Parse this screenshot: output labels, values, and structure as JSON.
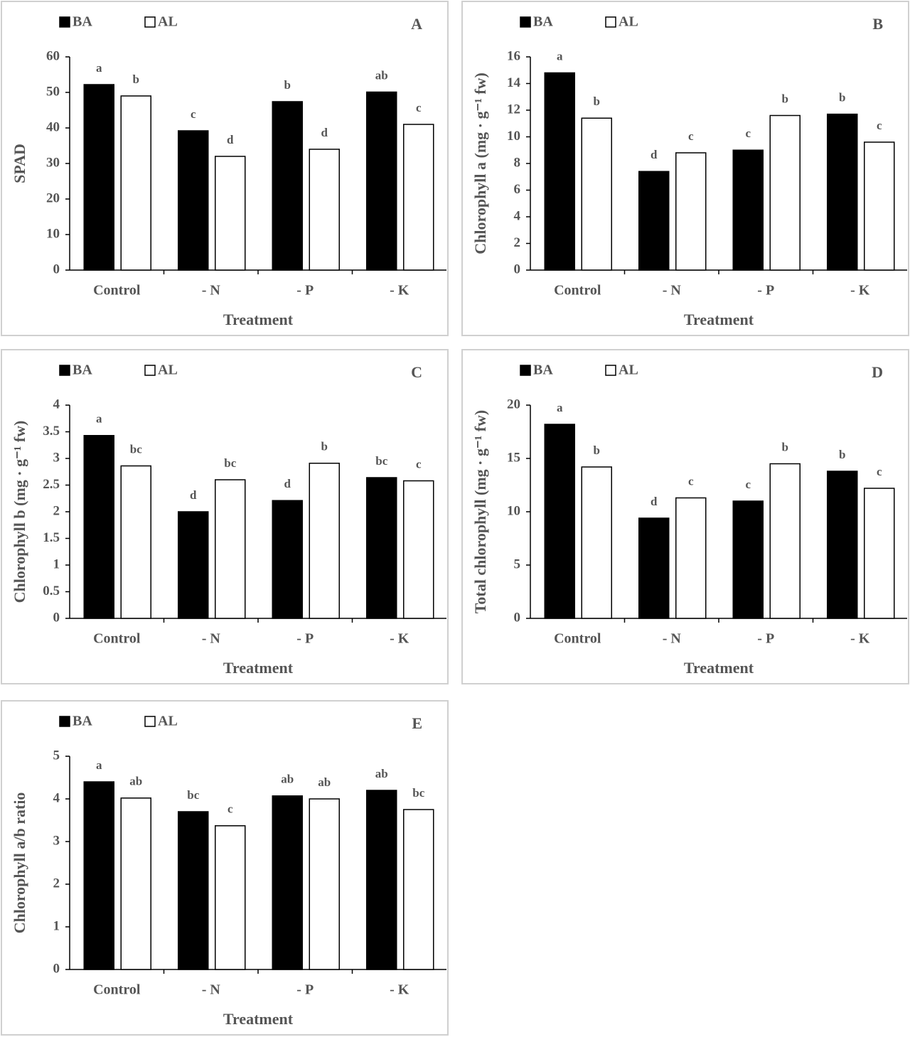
{
  "chart_data": [
    {
      "type": "bar",
      "panel": "A",
      "ylabel": "SPAD",
      "xlabel": "Treatment",
      "categories": [
        "Control",
        "- N",
        "- P",
        "- K"
      ],
      "series": [
        {
          "name": "BA",
          "color": "#000000",
          "values": [
            52.2,
            39.2,
            47.4,
            50.1
          ],
          "letters": [
            "a",
            "c",
            "b",
            "ab"
          ]
        },
        {
          "name": "AL",
          "color": "#ffffff",
          "values": [
            49,
            32,
            34,
            41
          ],
          "letters": [
            "b",
            "d",
            "d",
            "c"
          ]
        }
      ],
      "ylim": [
        0,
        60
      ],
      "yticks": [
        0,
        10,
        20,
        30,
        40,
        50,
        60
      ]
    },
    {
      "type": "bar",
      "panel": "B",
      "ylabel": "Chlorophyll a (mg · g⁻¹ fw)",
      "xlabel": "Treatment",
      "categories": [
        "Control",
        "- N",
        "- P",
        "- K"
      ],
      "series": [
        {
          "name": "BA",
          "color": "#000000",
          "values": [
            14.8,
            7.4,
            9.0,
            11.7
          ],
          "letters": [
            "a",
            "d",
            "c",
            "b"
          ]
        },
        {
          "name": "AL",
          "color": "#ffffff",
          "values": [
            11.4,
            8.8,
            11.6,
            9.6
          ],
          "letters": [
            "b",
            "c",
            "b",
            "c"
          ]
        }
      ],
      "ylim": [
        0,
        16
      ],
      "yticks": [
        0,
        2,
        4,
        6,
        8,
        10,
        12,
        14,
        16
      ]
    },
    {
      "type": "bar",
      "panel": "C",
      "ylabel": "Chlorophyll b (mg · g⁻¹ fw)",
      "xlabel": "Treatment",
      "categories": [
        "Control",
        "- N",
        "- P",
        "- K"
      ],
      "series": [
        {
          "name": "BA",
          "color": "#000000",
          "values": [
            3.43,
            2.0,
            2.21,
            2.64
          ],
          "letters": [
            "a",
            "d",
            "d",
            "bc"
          ]
        },
        {
          "name": "AL",
          "color": "#ffffff",
          "values": [
            2.86,
            2.6,
            2.91,
            2.58
          ],
          "letters": [
            "bc",
            "bc",
            "b",
            "c"
          ]
        }
      ],
      "ylim": [
        0,
        4
      ],
      "yticks": [
        0,
        0.5,
        1,
        1.5,
        2,
        2.5,
        3,
        3.5,
        4
      ]
    },
    {
      "type": "bar",
      "panel": "D",
      "ylabel": "Total chlorophyll (mg · g⁻¹ fw)",
      "xlabel": "Treatment",
      "categories": [
        "Control",
        "- N",
        "- P",
        "- K"
      ],
      "series": [
        {
          "name": "BA",
          "color": "#000000",
          "values": [
            18.2,
            9.4,
            11.0,
            13.8
          ],
          "letters": [
            "a",
            "d",
            "c",
            "b"
          ]
        },
        {
          "name": "AL",
          "color": "#ffffff",
          "values": [
            14.2,
            11.3,
            14.5,
            12.2
          ],
          "letters": [
            "b",
            "c",
            "b",
            "c"
          ]
        }
      ],
      "ylim": [
        0,
        20
      ],
      "yticks": [
        0,
        5,
        10,
        15,
        20
      ]
    },
    {
      "type": "bar",
      "panel": "E",
      "ylabel": "Chlorophyll a/b ratio",
      "xlabel": "Treatment",
      "categories": [
        "Control",
        "- N",
        "- P",
        "- K"
      ],
      "series": [
        {
          "name": "BA",
          "color": "#000000",
          "values": [
            4.4,
            3.7,
            4.07,
            4.2
          ],
          "letters": [
            "a",
            "bc",
            "ab",
            "ab"
          ]
        },
        {
          "name": "AL",
          "color": "#ffffff",
          "values": [
            4.02,
            3.37,
            4.0,
            3.75
          ],
          "letters": [
            "ab",
            "c",
            "ab",
            "bc"
          ]
        }
      ],
      "ylim": [
        0,
        5
      ],
      "yticks": [
        0,
        1,
        2,
        3,
        4,
        5
      ]
    }
  ]
}
